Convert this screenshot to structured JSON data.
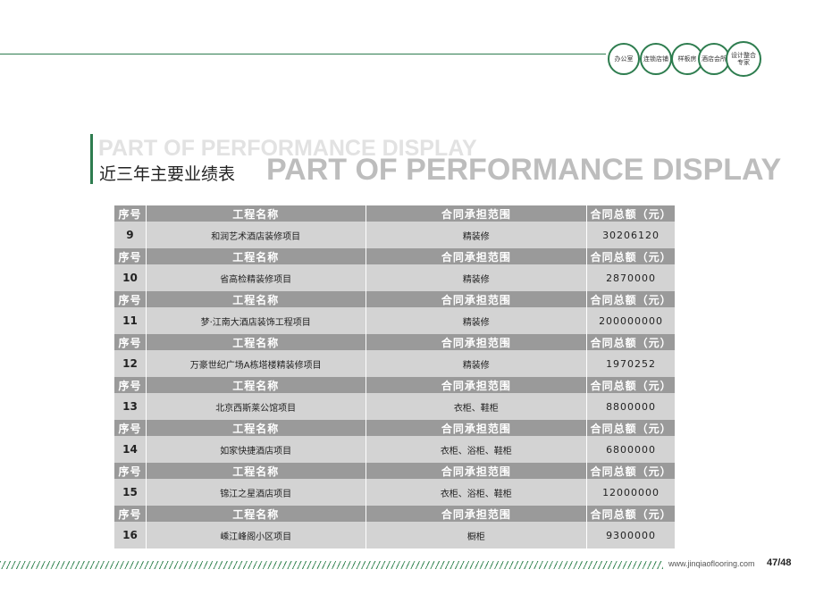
{
  "categories": [
    "办公室",
    "连锁店铺",
    "样板房",
    "酒店会所",
    "设计整合专家"
  ],
  "title": {
    "ghost": "PART OF PERFORMANCE DISPLAY",
    "cn": "近三年主要业绩表",
    "en": "PART OF PERFORMANCE DISPLAY"
  },
  "table": {
    "headers": [
      "序号",
      "工程名称",
      "合同承担范围",
      "合同总额（元）"
    ],
    "rows": [
      {
        "no": "9",
        "name": "和润艺术酒店装修项目",
        "scope": "精装修",
        "amount": "30206120"
      },
      {
        "no": "10",
        "name": "省高检精装修项目",
        "scope": "精装修",
        "amount": "2870000"
      },
      {
        "no": "11",
        "name": "梦·江南大酒店装饰工程项目",
        "scope": "精装修",
        "amount": "200000000"
      },
      {
        "no": "12",
        "name": "万豪世纪广场A栋塔楼精装修项目",
        "scope": "精装修",
        "amount": "1970252"
      },
      {
        "no": "13",
        "name": "北京西斯莱公馆项目",
        "scope": "衣柜、鞋柜",
        "amount": "8800000"
      },
      {
        "no": "14",
        "name": "如家快捷酒店项目",
        "scope": "衣柜、浴柜、鞋柜",
        "amount": "6800000"
      },
      {
        "no": "15",
        "name": "锦江之星酒店项目",
        "scope": "衣柜、浴柜、鞋柜",
        "amount": "12000000"
      },
      {
        "no": "16",
        "name": "嵊江峰阁小区项目",
        "scope": "橱柜",
        "amount": "9300000"
      }
    ]
  },
  "footer": {
    "url": "www.jinqiaoflooring.com",
    "page": "47/48"
  }
}
